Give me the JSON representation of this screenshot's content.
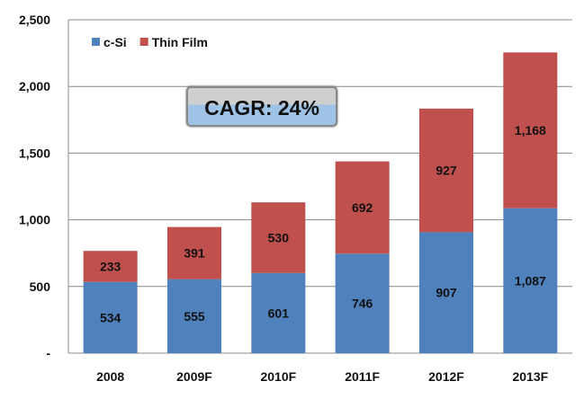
{
  "chart_data": {
    "type": "bar",
    "stacked": true,
    "categories": [
      "2008",
      "2009F",
      "2010F",
      "2011F",
      "2012F",
      "2013F"
    ],
    "series": [
      {
        "name": "c-Si",
        "color": "#4f81bd",
        "values": [
          534,
          555,
          601,
          746,
          907,
          1087
        ],
        "labels": [
          "534",
          "555",
          "601",
          "746",
          "907",
          "1,087"
        ]
      },
      {
        "name": "Thin Film",
        "color": "#c0504d",
        "values": [
          233,
          391,
          530,
          692,
          927,
          1168
        ],
        "labels": [
          "233",
          "391",
          "530",
          "692",
          "927",
          "1,168"
        ]
      }
    ],
    "yticks": [
      {
        "v": 0,
        "label": "-"
      },
      {
        "v": 500,
        "label": "500"
      },
      {
        "v": 1000,
        "label": "1,000"
      },
      {
        "v": 1500,
        "label": "1,500"
      },
      {
        "v": 2000,
        "label": "2,000"
      },
      {
        "v": 2500,
        "label": "2,500"
      }
    ],
    "ylim": [
      0,
      2500
    ],
    "legend_position": "top-left",
    "annotation": "CAGR: 24%",
    "grid": true
  }
}
